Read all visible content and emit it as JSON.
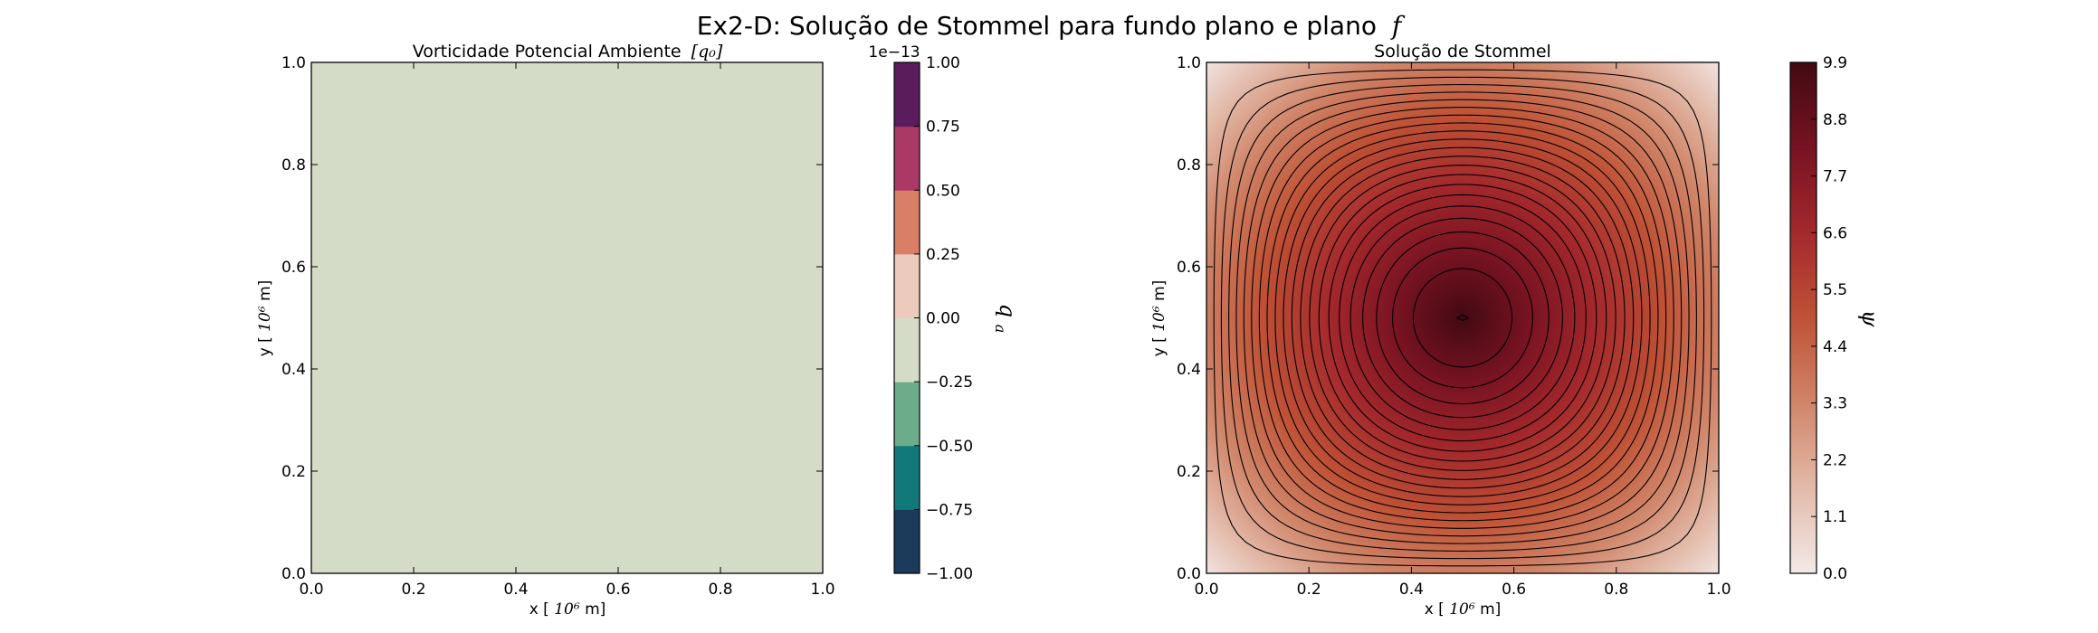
{
  "figure": {
    "suptitle": "Ex2-D: Solução de Stommel para fundo plano e plano",
    "suptitle_math": "f"
  },
  "chart_data": [
    {
      "type": "heatmap",
      "title": "Vorticidade Potencial Ambiente",
      "title_math": "[q₀]",
      "xlabel": "x [",
      "ylabel": "y [",
      "label_unit_math": "10⁶",
      "label_unit_tail": " m]",
      "xlim": [
        0.0,
        1.0
      ],
      "ylim": [
        0.0,
        1.0
      ],
      "x_ticks": [
        "0.0",
        "0.2",
        "0.4",
        "0.6",
        "0.8",
        "1.0"
      ],
      "y_ticks": [
        "0.0",
        "0.2",
        "0.4",
        "0.6",
        "0.8",
        "1.0"
      ],
      "field": "constant",
      "field_value": 0.0,
      "field_color": "#d4dcc7",
      "colorbar": {
        "label": "q",
        "label_sub": "a",
        "offset_text": "1e−13",
        "ticks": [
          "1.00",
          "0.75",
          "0.50",
          "0.25",
          "0.00",
          "−0.25",
          "−0.50",
          "−0.75",
          "−1.00"
        ],
        "levels": [
          -1.0,
          -0.75,
          -0.5,
          -0.25,
          0.0,
          0.25,
          0.5,
          0.75,
          1.0
        ],
        "colors": [
          "#1c3a5c",
          "#13787a",
          "#6cac8a",
          "#d4dcc7",
          "#eccbbd",
          "#d97f68",
          "#ab3966",
          "#5b1c5e"
        ]
      }
    },
    {
      "type": "heatmap",
      "subtype": "filled contour with contour lines",
      "title": "Solução de Stommel",
      "xlabel": "x [",
      "ylabel": "y [",
      "label_unit_math": "10⁶",
      "label_unit_tail": " m]",
      "xlim": [
        0.0,
        1.0
      ],
      "ylim": [
        0.0,
        1.0
      ],
      "x_ticks": [
        "0.0",
        "0.2",
        "0.4",
        "0.6",
        "0.8",
        "1.0"
      ],
      "y_ticks": [
        "0.0",
        "0.2",
        "0.4",
        "0.6",
        "0.8",
        "1.0"
      ],
      "field": "psi = psi_max * sin(pi*x) * sin(pi*y)",
      "psi_min": 0.0,
      "psi_max": 9.9,
      "center": [
        0.5,
        0.5
      ],
      "contour_count": 21,
      "colorbar": {
        "label": "ψ",
        "ticks": [
          "9.9",
          "8.8",
          "7.7",
          "6.6",
          "5.5",
          "4.4",
          "3.3",
          "2.2",
          "1.1",
          "0.0"
        ],
        "range": [
          0.0,
          9.9
        ],
        "color_stops": [
          "#f2e9e6",
          "#e2b9a8",
          "#d0866a",
          "#bf5236",
          "#a3282c",
          "#781322",
          "#420a12"
        ]
      }
    }
  ]
}
